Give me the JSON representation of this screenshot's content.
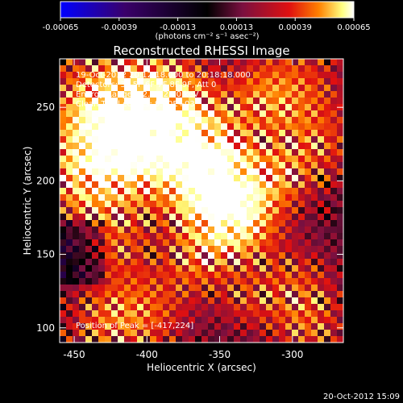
{
  "chart_data": {
    "type": "heatmap",
    "title": "Reconstructed RHESSI Image",
    "xlabel": "Heliocentric X (arcsec)",
    "ylabel": "Heliocentric Y (arcsec)",
    "xlim": [
      -460,
      -265
    ],
    "ylim": [
      90,
      283
    ],
    "xticks": [
      -450,
      -400,
      -350,
      -300
    ],
    "yticks": [
      100,
      150,
      200,
      250
    ],
    "colorbar": {
      "ticks": [
        "-0.00065",
        "-0.00039",
        "-0.00013",
        "0.00013",
        "0.00039",
        "0.00065"
      ],
      "unit_label": "(photons cm⁻² s⁻¹ asec⁻²)",
      "range": [
        -0.00065,
        0.00065
      ],
      "colors": [
        "#0000ff",
        "#3a006a",
        "#000000",
        "#7a1040",
        "#e01010",
        "#ff8000",
        "#ffff80",
        "#ffffff"
      ]
    },
    "annotations": [
      "19-Oct-2012 20:12:18.000 to 20:18:18.000",
      "Detectors: 3F 5F 6F 7F 8F 9F, Att 0",
      "Energy Range: 12.0 - 25.0 keV",
      "Clean    Total counts: 9.50E+03"
    ],
    "peak_label": "Position of Peak = [-417,224]",
    "peak": [
      -417,
      224
    ],
    "grid": false
  },
  "footer": {
    "timestamp": "20-Oct-2012 15:09"
  }
}
